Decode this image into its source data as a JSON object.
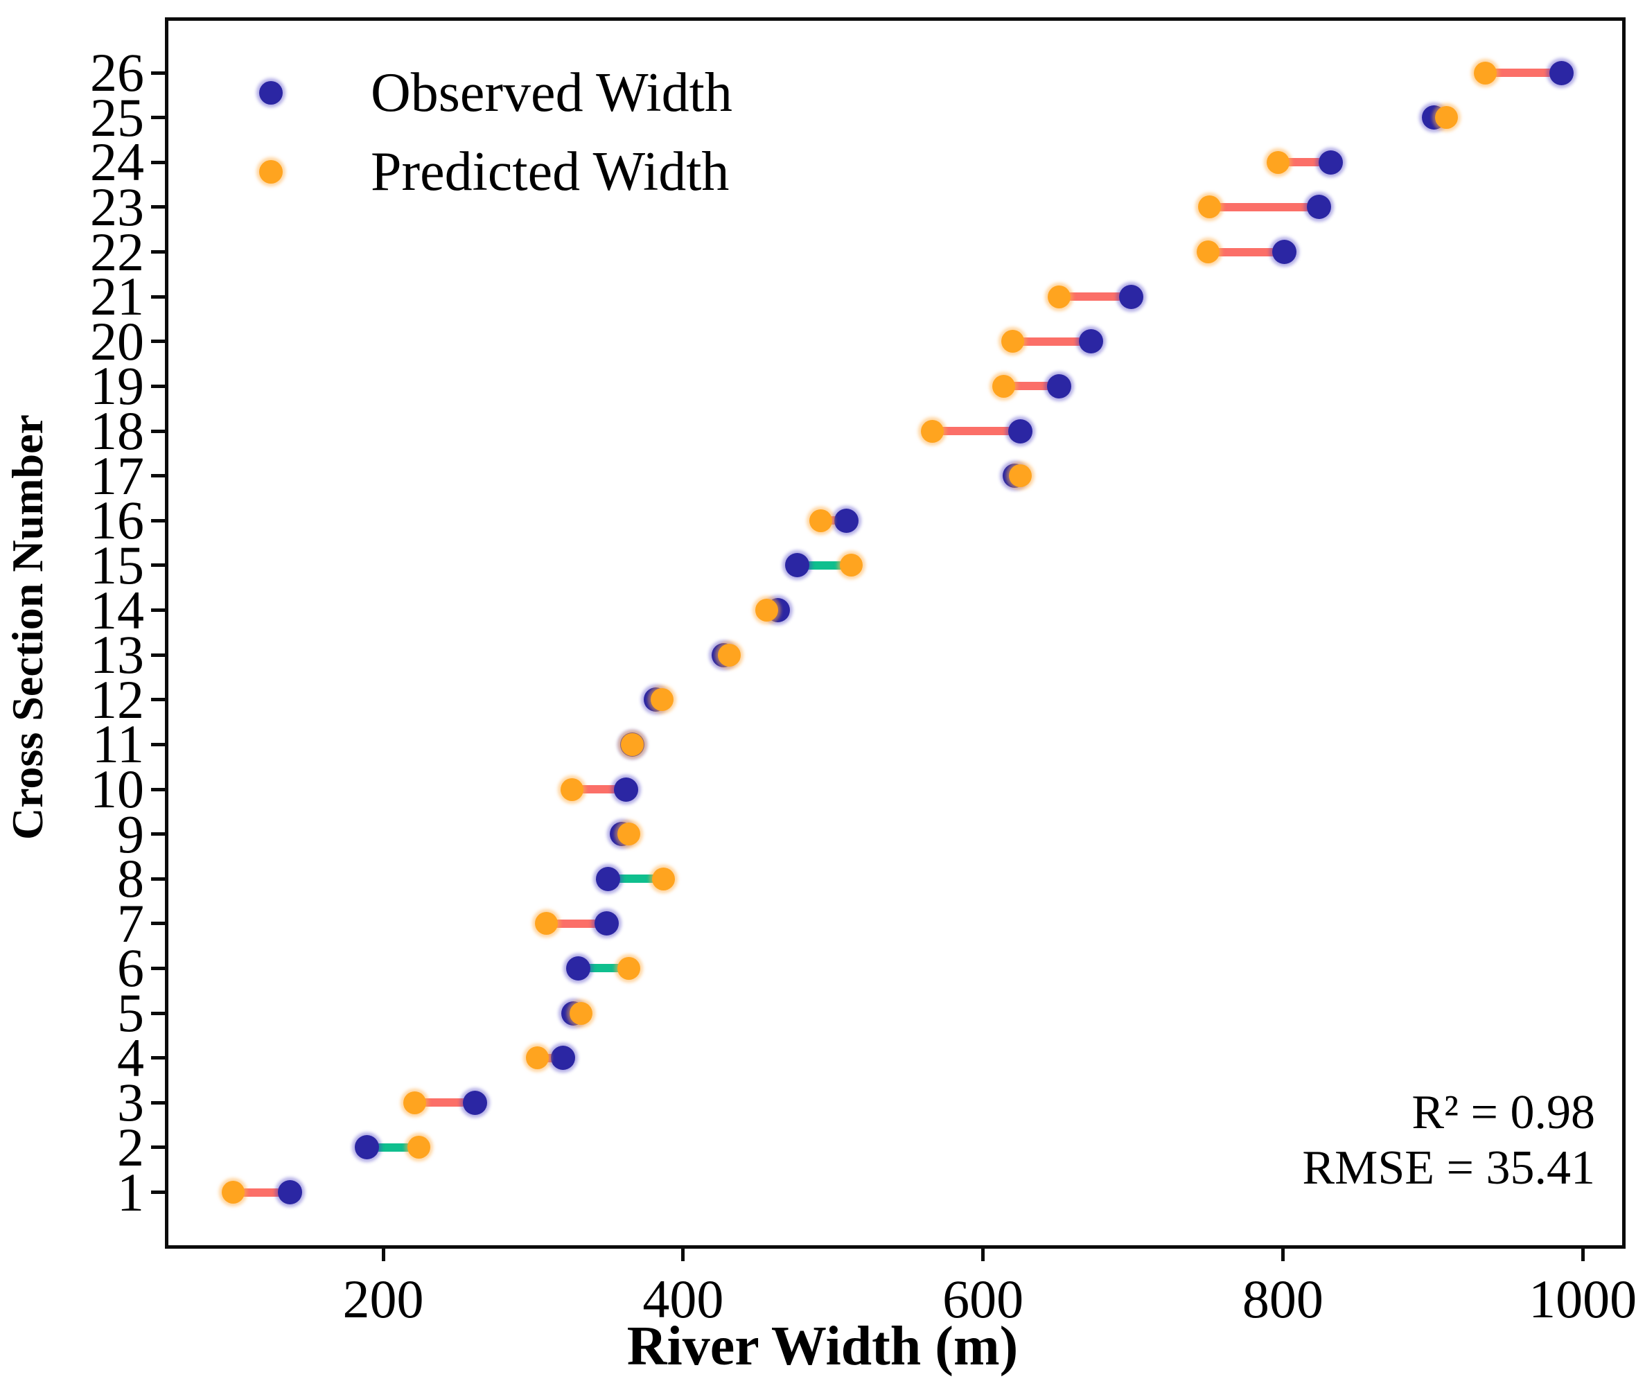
{
  "chart_data": {
    "type": "scatter",
    "variant": "dumbbell",
    "title": "",
    "xlabel": "River Width (m)",
    "ylabel": "Cross Section Number",
    "xlim": [
      54.4,
      1028.6
    ],
    "ylim": [
      -0.26,
      27.24
    ],
    "xticks": [
      200,
      400,
      600,
      800,
      1000
    ],
    "yticks": [
      1,
      2,
      3,
      4,
      5,
      6,
      7,
      8,
      9,
      10,
      11,
      12,
      13,
      14,
      15,
      16,
      17,
      18,
      19,
      20,
      21,
      22,
      23,
      24,
      25,
      26
    ],
    "grid": false,
    "legend": {
      "position": "upper left",
      "entries": [
        {
          "label": "Observed Width",
          "color": "#2B26A3"
        },
        {
          "label": "Predicted Width",
          "color": "#FFA41F"
        }
      ]
    },
    "annotations": {
      "r2": "R² = 0.98",
      "rmse": "RMSE = 35.41"
    },
    "colors": {
      "observed": "#2B26A3",
      "predicted": "#FFA41F",
      "connector_observed_greater": "#FB6F68",
      "connector_predicted_greater": "#0FBF8E"
    },
    "rows": [
      {
        "cross_section": 1,
        "observed": 138,
        "predicted": 100
      },
      {
        "cross_section": 2,
        "observed": 189,
        "predicted": 224
      },
      {
        "cross_section": 3,
        "observed": 261,
        "predicted": 221
      },
      {
        "cross_section": 4,
        "observed": 320,
        "predicted": 303
      },
      {
        "cross_section": 5,
        "observed": 327,
        "predicted": 332
      },
      {
        "cross_section": 6,
        "observed": 330,
        "predicted": 364
      },
      {
        "cross_section": 7,
        "observed": 349,
        "predicted": 309
      },
      {
        "cross_section": 8,
        "observed": 350,
        "predicted": 387
      },
      {
        "cross_section": 9,
        "observed": 359,
        "predicted": 364
      },
      {
        "cross_section": 10,
        "observed": 362,
        "predicted": 326
      },
      {
        "cross_section": 11,
        "observed": 366,
        "predicted": 366
      },
      {
        "cross_section": 12,
        "observed": 382,
        "predicted": 386
      },
      {
        "cross_section": 13,
        "observed": 427,
        "predicted": 431
      },
      {
        "cross_section": 14,
        "observed": 463,
        "predicted": 456
      },
      {
        "cross_section": 15,
        "observed": 476,
        "predicted": 512
      },
      {
        "cross_section": 16,
        "observed": 509,
        "predicted": 492
      },
      {
        "cross_section": 17,
        "observed": 621,
        "predicted": 625
      },
      {
        "cross_section": 18,
        "observed": 625,
        "predicted": 566
      },
      {
        "cross_section": 19,
        "observed": 651,
        "predicted": 614
      },
      {
        "cross_section": 20,
        "observed": 672,
        "predicted": 620
      },
      {
        "cross_section": 21,
        "observed": 699,
        "predicted": 651
      },
      {
        "cross_section": 22,
        "observed": 801,
        "predicted": 750
      },
      {
        "cross_section": 23,
        "observed": 824,
        "predicted": 751
      },
      {
        "cross_section": 24,
        "observed": 832,
        "predicted": 797
      },
      {
        "cross_section": 25,
        "observed": 901,
        "predicted": 909
      },
      {
        "cross_section": 26,
        "observed": 986,
        "predicted": 935
      }
    ]
  }
}
